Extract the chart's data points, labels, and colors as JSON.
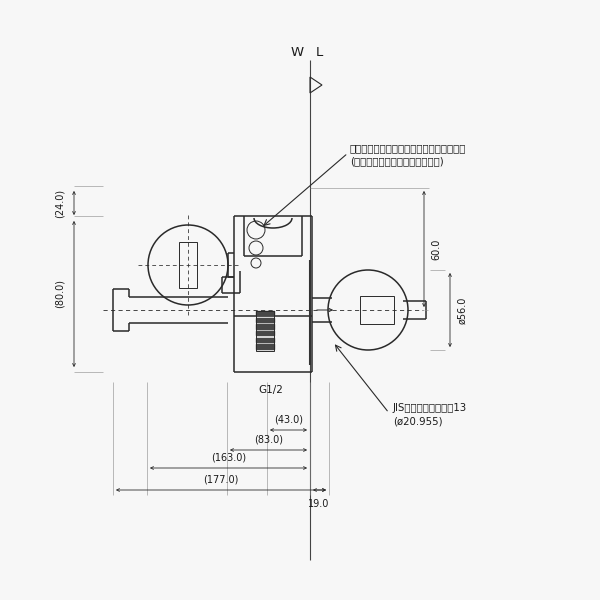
{
  "bg_color": "#f7f7f7",
  "line_color": "#2a2a2a",
  "text_color": "#1a1a1a",
  "wl_label": "WL",
  "annotation1": "この部分にシャワーセットを取付けます。",
  "annotation2": "(シャワーセットは添付図面参照)",
  "g12_label": "G1/2",
  "jis_label": "JIS給水栓取付ねじ　13",
  "jis_label2": "(ø20.955)",
  "dims": {
    "d24": "(24.0)",
    "d80": "(80.0)",
    "d60": "60.0",
    "d56": "ø56.0",
    "d43": "(43.0)",
    "d83": "(83.0)",
    "d163": "(163.0)",
    "d177": "(177.0)",
    "d19": "19.0"
  }
}
